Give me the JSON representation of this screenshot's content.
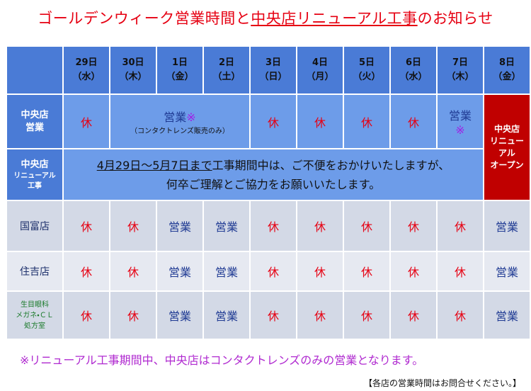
{
  "header": {
    "title_before": "ゴールデンウィーク営業時間と",
    "title_underlined": "中央店リニューアル工事",
    "title_after": "のお知らせ"
  },
  "table": {
    "columns": [
      [
        "29日",
        "（水）"
      ],
      [
        "30日",
        "（木）"
      ],
      [
        "1日",
        "（金）"
      ],
      [
        "2日",
        "（土）"
      ],
      [
        "3日",
        "（日）"
      ],
      [
        "4日",
        "（月）"
      ],
      [
        "5日",
        "（火）"
      ],
      [
        "6日",
        "（水）"
      ],
      [
        "7日",
        "（木）"
      ],
      [
        "8日",
        "（金）"
      ]
    ],
    "central_hours": {
      "label": [
        "中央店",
        "営業"
      ],
      "cells": [
        {
          "text": "休",
          "color": "#e60012"
        },
        {
          "text": "営業",
          "mark": "※",
          "note": "（コンタクトレンズ販売のみ）",
          "color": "#1f3a93"
        },
        {
          "text": "休",
          "color": "#e60012"
        },
        {
          "text": "休",
          "color": "#e60012"
        },
        {
          "text": "休",
          "color": "#e60012"
        },
        {
          "text": "休",
          "color": "#e60012"
        },
        {
          "text": "営業",
          "mark": "※",
          "color": "#1f3a93"
        }
      ]
    },
    "central_renewal_work": {
      "label": [
        "中央店",
        "リニューアル",
        "工事"
      ],
      "notice_underlined": "4月29日～5月7日まで",
      "notice_line1": "工事期間中は、ご不便をおかけいたしますが、",
      "notice_line2": "何卒ご理解とご協力をお願いいたします。"
    },
    "renewal_open": [
      "中央店",
      "リニュー",
      "アル",
      "オープン"
    ],
    "stores": [
      {
        "label": [
          "国富店"
        ],
        "cells": [
          {
            "text": "休",
            "color": "#e60012"
          },
          {
            "text": "休",
            "color": "#e60012"
          },
          {
            "text": "営業",
            "color": "#1f3a93"
          },
          {
            "text": "営業",
            "color": "#1f3a93"
          },
          {
            "text": "休",
            "color": "#e60012"
          },
          {
            "text": "休",
            "color": "#e60012"
          },
          {
            "text": "休",
            "color": "#e60012"
          },
          {
            "text": "休",
            "color": "#e60012"
          },
          {
            "text": "休",
            "color": "#e60012"
          },
          {
            "text": "営業",
            "color": "#1f3a93"
          }
        ]
      },
      {
        "label": [
          "住吉店"
        ],
        "cells": [
          {
            "text": "休",
            "color": "#e60012"
          },
          {
            "text": "休",
            "color": "#e60012"
          },
          {
            "text": "営業",
            "color": "#1f3a93"
          },
          {
            "text": "営業",
            "color": "#1f3a93"
          },
          {
            "text": "休",
            "color": "#e60012"
          },
          {
            "text": "休",
            "color": "#e60012"
          },
          {
            "text": "休",
            "color": "#e60012"
          },
          {
            "text": "休",
            "color": "#e60012"
          },
          {
            "text": "休",
            "color": "#e60012"
          },
          {
            "text": "営業",
            "color": "#1f3a93"
          }
        ]
      },
      {
        "label": [
          "生目眼科",
          "メガネ・ＣＬ",
          "処方室"
        ],
        "cells": [
          {
            "text": "休",
            "color": "#e60012"
          },
          {
            "text": "休",
            "color": "#e60012"
          },
          {
            "text": "営業",
            "color": "#1f3a93"
          },
          {
            "text": "営業",
            "color": "#1f3a93"
          },
          {
            "text": "休",
            "color": "#e60012"
          },
          {
            "text": "休",
            "color": "#e60012"
          },
          {
            "text": "休",
            "color": "#e60012"
          },
          {
            "text": "休",
            "color": "#e60012"
          },
          {
            "text": "休",
            "color": "#e60012"
          },
          {
            "text": "営業",
            "color": "#1f3a93"
          }
        ]
      }
    ]
  },
  "footnote": "※リニューアル工事期間中、中央店はコンタクトレンズのみの営業となります。",
  "note": "【各店の営業時間はお問合せください。】"
}
